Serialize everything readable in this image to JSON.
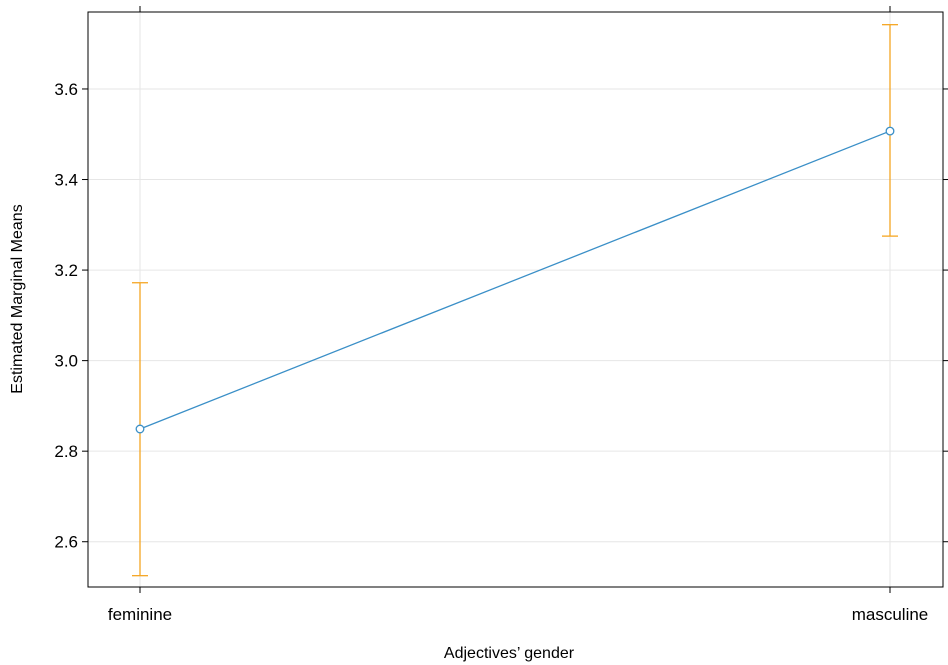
{
  "chart_data": {
    "type": "line",
    "categories": [
      "feminine",
      "masculine"
    ],
    "series": [
      {
        "values": [
          2.849,
          3.507
        ],
        "ci_lower": [
          2.525,
          3.275
        ],
        "ci_upper": [
          3.172,
          3.742
        ],
        "line_color": "#3a8fc7",
        "errorbar_color": "#f5a623"
      }
    ],
    "xlabel": "Adjectives’ gender",
    "ylabel": "Estimated Marginal Means",
    "ylim": [
      2.5,
      3.77
    ],
    "yticks": [
      2.6,
      2.8,
      3.0,
      3.2,
      3.4,
      3.6
    ],
    "ytick_labels": [
      "2.6",
      "2.8",
      "3.0",
      "3.2",
      "3.4",
      "3.6"
    ],
    "grid": true,
    "grid_color": "#e6e6e6",
    "legend": "none"
  }
}
